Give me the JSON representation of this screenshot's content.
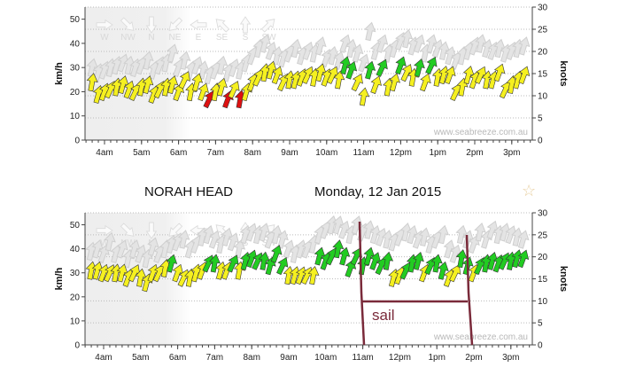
{
  "second_chart_header": {
    "location": "NORAH HEAD",
    "date": "Monday, 12 Jan 2015",
    "favorite_icon": "star-icon"
  },
  "watermark": "www.seabreeze.com.au",
  "annotation": {
    "label": "sail",
    "start_time": "10:55",
    "end_time": "13:45",
    "color": "#7a2a3a"
  },
  "colors": {
    "yellow": "#f5f020",
    "green": "#22cc22",
    "red": "#dd1111",
    "gust": "#e4e4e4"
  },
  "chart_data": [
    {
      "type": "scatter",
      "title": "",
      "xlabel": "",
      "ylabel": "km/h",
      "y2label": "knots",
      "ylim": [
        0,
        55
      ],
      "y2lim": [
        0,
        30
      ],
      "yticks": [
        0,
        10,
        20,
        30,
        40,
        50
      ],
      "y2ticks": [
        0,
        5,
        10,
        15,
        20,
        25,
        30
      ],
      "xticks": [
        "4am",
        "5am",
        "6am",
        "7am",
        "8am",
        "9am",
        "10am",
        "11am",
        "12pm",
        "1pm",
        "2pm",
        "3pm"
      ],
      "direction_legend": [
        "W",
        "NW",
        "N",
        "NE",
        "E",
        "SE",
        "S",
        "SW"
      ],
      "start_hour": 3.6667,
      "interval_min": 10,
      "speed_kmh": [
        24,
        19,
        20,
        21,
        22,
        23,
        21,
        20,
        22,
        23,
        19,
        21,
        22,
        23,
        20,
        25,
        20,
        24,
        20,
        17,
        20,
        22,
        17,
        21,
        17,
        20,
        24,
        26,
        28,
        29,
        27,
        24,
        25,
        25,
        26,
        27,
        26,
        28,
        26,
        27,
        25,
        31,
        29,
        24,
        18,
        29,
        23,
        30,
        22,
        24,
        31,
        28,
        26,
        30,
        24,
        31,
        26,
        27,
        27,
        20,
        22,
        27,
        25,
        27,
        25,
        25,
        28,
        21,
        23,
        25,
        27
      ],
      "gust_kmh": [
        30,
        28,
        29,
        30,
        31,
        32,
        31,
        30,
        31,
        33,
        29,
        31,
        32,
        36,
        30,
        33,
        29,
        31,
        29,
        27,
        29,
        31,
        28,
        30,
        29,
        32,
        35,
        38,
        40,
        37,
        35,
        34,
        36,
        38,
        35,
        37,
        36,
        39,
        34,
        35,
        33,
        40,
        38,
        36,
        32,
        45,
        37,
        40,
        36,
        38,
        41,
        42,
        39,
        40,
        36,
        40,
        38,
        37,
        35,
        33,
        35,
        37,
        39,
        40,
        38,
        37,
        38,
        36,
        37,
        38,
        39
      ],
      "color": [
        "y",
        "y",
        "y",
        "y",
        "y",
        "y",
        "y",
        "y",
        "y",
        "y",
        "y",
        "y",
        "y",
        "y",
        "y",
        "y",
        "y",
        "y",
        "y",
        "r",
        "y",
        "y",
        "r",
        "y",
        "r",
        "y",
        "y",
        "y",
        "y",
        "y",
        "y",
        "y",
        "y",
        "y",
        "y",
        "y",
        "y",
        "y",
        "y",
        "y",
        "y",
        "g",
        "g",
        "y",
        "y",
        "g",
        "y",
        "g",
        "y",
        "y",
        "g",
        "y",
        "y",
        "g",
        "y",
        "g",
        "y",
        "y",
        "y",
        "y",
        "y",
        "y",
        "y",
        "y",
        "y",
        "y",
        "y",
        "y",
        "y",
        "y",
        "y"
      ]
    },
    {
      "type": "scatter",
      "title": "NORAH HEAD  Monday, 12 Jan 2015",
      "xlabel": "",
      "ylabel": "km/h",
      "y2label": "knots",
      "ylim": [
        0,
        55
      ],
      "y2lim": [
        0,
        30
      ],
      "yticks": [
        0,
        10,
        20,
        30,
        40,
        50
      ],
      "y2ticks": [
        0,
        5,
        10,
        15,
        20,
        25,
        30
      ],
      "xticks": [
        "4am",
        "5am",
        "6am",
        "7am",
        "8am",
        "9am",
        "10am",
        "11am",
        "12pm",
        "1pm",
        "2pm",
        "3pm"
      ],
      "direction_legend": [
        "W",
        "NW",
        "N",
        "NE",
        "E",
        "SE",
        "S",
        "SW"
      ],
      "start_hour": 3.6667,
      "interval_min": 10,
      "speed_kmh": [
        31,
        31,
        30,
        30,
        30,
        30,
        28,
        30,
        28,
        26,
        30,
        30,
        32,
        34,
        30,
        28,
        28,
        30,
        31,
        34,
        34,
        31,
        31,
        34,
        31,
        35,
        36,
        35,
        35,
        33,
        38,
        33,
        29,
        29,
        29,
        29,
        29,
        37,
        35,
        37,
        40,
        37,
        32,
        37,
        33,
        37,
        35,
        33,
        35,
        28,
        29,
        31,
        34,
        35,
        30,
        33,
        34,
        31,
        28,
        30,
        36,
        33,
        30,
        33,
        34,
        35,
        34,
        35,
        35,
        36,
        36
      ],
      "gust_kmh": [
        39,
        40,
        38,
        43,
        38,
        40,
        36,
        40,
        38,
        36,
        41,
        38,
        40,
        42,
        43,
        44,
        40,
        42,
        45,
        46,
        44,
        42,
        45,
        43,
        40,
        46,
        47,
        46,
        47,
        44,
        46,
        44,
        40,
        38,
        40,
        40,
        42,
        46,
        48,
        50,
        50,
        48,
        46,
        50,
        47,
        48,
        46,
        45,
        44,
        43,
        45,
        47,
        46,
        44,
        45,
        42,
        44,
        46,
        40,
        38,
        46,
        44,
        42,
        47,
        44,
        48,
        46,
        47,
        46,
        45,
        44
      ],
      "color": [
        "y",
        "y",
        "y",
        "y",
        "y",
        "y",
        "y",
        "y",
        "y",
        "y",
        "y",
        "y",
        "y",
        "g",
        "y",
        "y",
        "y",
        "y",
        "y",
        "g",
        "g",
        "y",
        "y",
        "g",
        "y",
        "g",
        "g",
        "g",
        "g",
        "g",
        "g",
        "g",
        "y",
        "y",
        "y",
        "y",
        "y",
        "g",
        "g",
        "g",
        "g",
        "g",
        "g",
        "g",
        "g",
        "g",
        "g",
        "g",
        "g",
        "y",
        "y",
        "g",
        "g",
        "g",
        "y",
        "g",
        "g",
        "g",
        "y",
        "y",
        "g",
        "g",
        "y",
        "g",
        "g",
        "g",
        "g",
        "g",
        "g",
        "g",
        "g"
      ]
    }
  ]
}
